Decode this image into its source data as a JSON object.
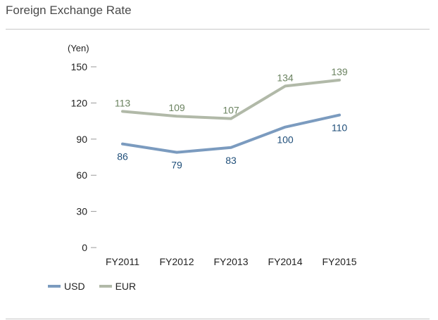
{
  "page": {
    "title": "Foreign Exchange Rate"
  },
  "chart_data": {
    "type": "line",
    "title": "Foreign Exchange Rate",
    "ylabel": "(Yen)",
    "xlabel": "",
    "categories": [
      "FY2011",
      "FY2012",
      "FY2013",
      "FY2014",
      "FY2015"
    ],
    "ylim": [
      0,
      150
    ],
    "yticks": [
      0,
      30,
      60,
      90,
      120,
      150
    ],
    "grid": false,
    "legend_position": "bottom-left",
    "series": [
      {
        "name": "USD",
        "color": "#7b9bbf",
        "label_color": "#1f4e79",
        "values": [
          86,
          79,
          83,
          100,
          110
        ]
      },
      {
        "name": "EUR",
        "color": "#b1b9a8",
        "label_color": "#6b8360",
        "values": [
          113,
          109,
          107,
          134,
          139
        ]
      }
    ]
  }
}
